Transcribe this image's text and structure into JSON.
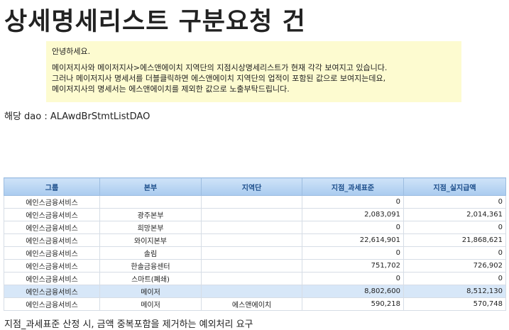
{
  "header": {
    "title": "상세명세리스트 구분요청 건"
  },
  "notice": {
    "lines": [
      "안녕하세요.",
      "메이저지사와 메이저지사>에스앤에이치 지역단의 지점시상명세리스트가 현재 각각 보여지고 있습니다.",
      "그러나 메이저지사 명세서를 더블클릭하면 에스앤에이치 지역단의 업적이 포함된 값으로 보여지는데요,",
      "메이저지사의 명세서는 에스앤에이치를 제외한 값으로 노출부탁드립니다."
    ]
  },
  "dao": "해당 dao : ALAwdBrStmtListDAO",
  "table": {
    "headers": [
      "그룹",
      "본부",
      "지역단",
      "지점_과세표준",
      "지점_실지급액"
    ],
    "rows": [
      [
        "에인스금융서비스",
        null,
        null,
        "0",
        "0"
      ],
      [
        "에인스금융서비스",
        "광주본부",
        null,
        "2,083,091",
        "2,014,361"
      ],
      [
        "에인스금융서비스",
        "희망본부",
        null,
        "0",
        "0"
      ],
      [
        "에인스금융서비스",
        "와이지본부",
        null,
        "22,614,901",
        "21,868,621"
      ],
      [
        "에인스금융서비스",
        "솔림",
        null,
        "0",
        "0"
      ],
      [
        "에인스금융서비스",
        "한솔금융센터",
        null,
        "751,702",
        "726,902"
      ],
      [
        "에인스금융서비스",
        "스마트(폐쇄)",
        null,
        "0",
        "0"
      ],
      [
        "에인스금융서비스",
        "메이저",
        null,
        "8,802,600",
        "8,512,130"
      ],
      [
        "에인스금융서비스",
        "메이저",
        "에스앤에이치",
        "590,218",
        "570,748"
      ]
    ],
    "highlight_row": 7
  },
  "footer": "지점_과세표준 산정 시, 금액 중복포함을 제거하는 예외처리 요구"
}
